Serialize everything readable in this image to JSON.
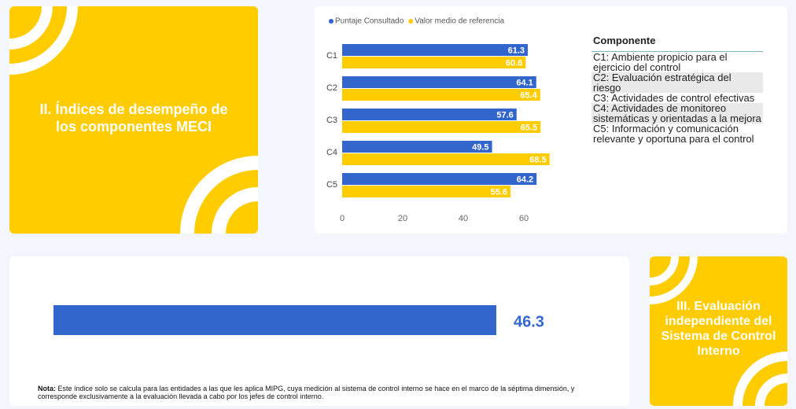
{
  "left_card": {
    "title": "II. Índices de desempeño de los componentes MECI"
  },
  "chart_data": [
    {
      "type": "hbar",
      "categories": [
        "C1",
        "C2",
        "C3",
        "C4",
        "C5"
      ],
      "series": [
        {
          "name": "Puntaje Consultado",
          "color": "#3366cc",
          "values": [
            61.3,
            64.1,
            57.6,
            49.5,
            64.2
          ]
        },
        {
          "name": "Valor medio de referencia",
          "color": "#ffcc00",
          "values": [
            60.6,
            65.4,
            65.5,
            68.5,
            55.6
          ]
        }
      ],
      "xlim": [
        0,
        70
      ],
      "xticks": [
        0,
        20,
        40,
        60
      ]
    },
    {
      "type": "single-bar",
      "values": [
        46.3
      ],
      "color": "#3366cc",
      "xlim": [
        0,
        50
      ]
    }
  ],
  "component_table": {
    "header": "Componente",
    "rows": [
      "C1: Ambiente propicio para el ejercicio del control",
      "C2: Evaluación estratégica del riesgo",
      "C3: Actividades de control efectivas",
      "C4: Actividades de monitoreo sistemáticas y orientadas a la mejora",
      "C5: Información y comunicación relevante y oportuna para el control"
    ]
  },
  "right_card": {
    "title": "III. Evaluación independiente del Sistema de Control Interno"
  },
  "note": {
    "label": "Nota:",
    "text": " Este índice solo se calcula para las entidades a las que les aplica MIPG, cuya medición al sistema de control interno se hace en el marco de la séptima dimensión, y corresponde exclusivamente a la evaluación llevada a cabo por los jefes de control interno."
  }
}
